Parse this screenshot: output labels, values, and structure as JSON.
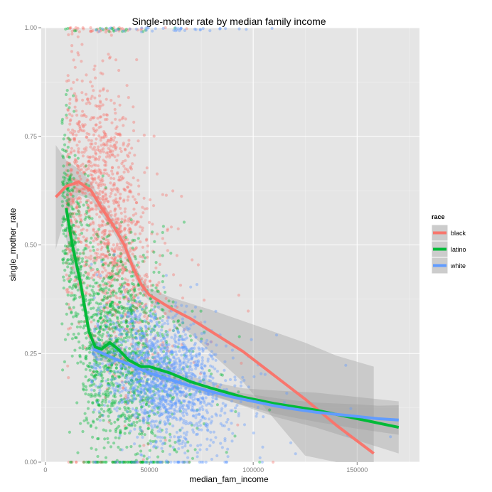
{
  "chart_data": {
    "type": "scatter",
    "title": "Single-mother rate by median family income",
    "xlabel": "median_fam_income",
    "ylabel": "single_mother_rate",
    "xlim": [
      -2000,
      180000
    ],
    "ylim": [
      0,
      1
    ],
    "x_ticks": [
      0,
      50000,
      100000,
      150000
    ],
    "x_tick_labels": [
      "0",
      "50000",
      "100000",
      "150000"
    ],
    "y_ticks": [
      0,
      0.25,
      0.5,
      0.75,
      1
    ],
    "y_tick_labels": [
      "0.00",
      "0.25",
      "0.50",
      "0.75",
      "1.00"
    ],
    "legend": {
      "title": "race",
      "placement": "right",
      "entries": [
        {
          "label": "black",
          "color": "#F8766D"
        },
        {
          "label": "latino",
          "color": "#00BA38"
        },
        {
          "label": "white",
          "color": "#619CFF"
        }
      ]
    },
    "series": [
      {
        "name": "black",
        "color": "#F8766D",
        "point_cloud": {
          "count": 1400,
          "x_center": 30000,
          "x_spread": 12000,
          "x_min": 10000,
          "x_max": 130000,
          "y_center": 0.55,
          "y_spread": 0.16
        },
        "smooth_x": [
          5000,
          10000,
          16000,
          22000,
          27000,
          32000,
          38000,
          42000,
          46000,
          50000,
          55000,
          60000,
          70000,
          80000,
          95000,
          110000,
          125000,
          140000,
          158000
        ],
        "smooth_y": [
          0.61,
          0.635,
          0.645,
          0.625,
          0.585,
          0.55,
          0.5,
          0.45,
          0.41,
          0.385,
          0.37,
          0.355,
          0.33,
          0.3,
          0.255,
          0.2,
          0.145,
          0.085,
          0.02
        ],
        "band_half_width": [
          0.12,
          0.06,
          0.03,
          0.02,
          0.015,
          0.015,
          0.015,
          0.015,
          0.015,
          0.015,
          0.02,
          0.025,
          0.035,
          0.05,
          0.07,
          0.1,
          0.13,
          0.16,
          0.2
        ]
      },
      {
        "name": "latino",
        "color": "#00BA38",
        "point_cloud": {
          "count": 1500,
          "x_center": 33000,
          "x_spread": 14000,
          "x_min": 8000,
          "x_max": 125000,
          "y_center": 0.27,
          "y_spread": 0.13
        },
        "smooth_x": [
          10000,
          13000,
          17000,
          21000,
          24000,
          27000,
          31000,
          35000,
          40000,
          46000,
          50000,
          60000,
          70000,
          80000,
          95000,
          110000,
          130000,
          150000,
          170000
        ],
        "smooth_y": [
          0.585,
          0.5,
          0.41,
          0.3,
          0.265,
          0.26,
          0.275,
          0.26,
          0.235,
          0.22,
          0.22,
          0.205,
          0.185,
          0.17,
          0.15,
          0.135,
          0.12,
          0.1,
          0.08
        ],
        "band_half_width": [
          0.07,
          0.05,
          0.03,
          0.02,
          0.015,
          0.012,
          0.012,
          0.01,
          0.01,
          0.01,
          0.01,
          0.01,
          0.012,
          0.015,
          0.02,
          0.03,
          0.04,
          0.05,
          0.06
        ]
      },
      {
        "name": "white",
        "color": "#619CFF",
        "point_cloud": {
          "count": 1600,
          "x_center": 58000,
          "x_spread": 14000,
          "x_min": 22000,
          "x_max": 172000,
          "y_center": 0.2,
          "y_spread": 0.075
        },
        "smooth_x": [
          23000,
          30000,
          40000,
          50000,
          60000,
          70000,
          80000,
          90000,
          100000,
          110000,
          120000,
          130000,
          140000,
          150000,
          160000,
          170000
        ],
        "smooth_y": [
          0.26,
          0.245,
          0.225,
          0.205,
          0.19,
          0.175,
          0.162,
          0.15,
          0.14,
          0.13,
          0.122,
          0.115,
          0.11,
          0.105,
          0.1,
          0.097
        ],
        "band_half_width": [
          0.025,
          0.015,
          0.01,
          0.008,
          0.008,
          0.008,
          0.01,
          0.012,
          0.015,
          0.018,
          0.02,
          0.022,
          0.025,
          0.028,
          0.03,
          0.034
        ]
      }
    ]
  }
}
